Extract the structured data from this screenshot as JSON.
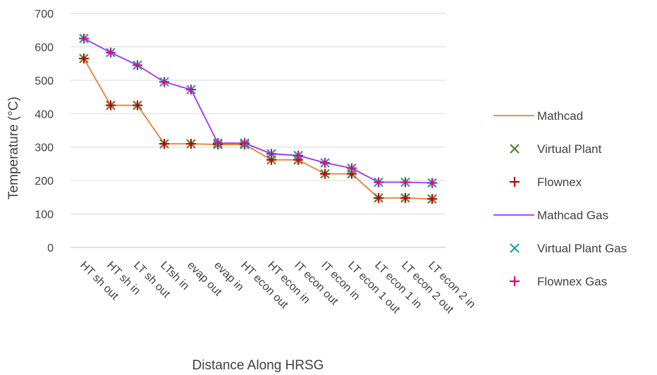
{
  "chart_data": {
    "type": "line",
    "title": "",
    "xlabel": "Distance Along HRSG",
    "ylabel": "Temperature (°C)",
    "ylim": [
      0,
      700
    ],
    "yticks": [
      "0",
      "100",
      "200",
      "300",
      "400",
      "500",
      "600",
      "700"
    ],
    "grid": true,
    "legend_position": "right",
    "categories": [
      "HT sh out",
      "HT sh in",
      "LT sh out",
      "LTsh in",
      "evap out",
      "evap in",
      "HT econ out",
      "HT econ in",
      "IT econ out",
      "IT econ in",
      "LT econ 1 out",
      "LT econ 1 in",
      "LT econ 2 out",
      "LT econ 2 in"
    ],
    "series": [
      {
        "name": "Mathcad",
        "kind": "line",
        "color": "#ED7D31",
        "values": [
          565,
          425,
          425,
          310,
          310,
          308,
          308,
          262,
          262,
          220,
          220,
          148,
          148,
          145
        ]
      },
      {
        "name": "Virtual Plant",
        "kind": "x-marker",
        "color": "#548235",
        "values": [
          565,
          425,
          425,
          310,
          310,
          308,
          308,
          262,
          262,
          220,
          220,
          148,
          148,
          145
        ]
      },
      {
        "name": "Flownex",
        "kind": "plus-marker",
        "color": "#C00000",
        "values": [
          565,
          425,
          425,
          310,
          310,
          308,
          308,
          262,
          262,
          220,
          220,
          148,
          148,
          145
        ]
      },
      {
        "name": "Mathcad Gas",
        "kind": "line",
        "color": "#9933FF",
        "values": [
          625,
          583,
          545,
          495,
          472,
          312,
          312,
          280,
          275,
          253,
          237,
          195,
          195,
          193
        ]
      },
      {
        "name": "Virtual Plant Gas",
        "kind": "x-marker",
        "color": "#1F9FA4",
        "values": [
          625,
          583,
          545,
          495,
          472,
          312,
          312,
          280,
          275,
          253,
          237,
          195,
          195,
          193
        ]
      },
      {
        "name": "Flownex Gas",
        "kind": "plus-marker",
        "color": "#E6007E",
        "values": [
          625,
          583,
          545,
          495,
          472,
          312,
          312,
          280,
          275,
          253,
          237,
          195,
          195,
          193
        ]
      }
    ]
  }
}
